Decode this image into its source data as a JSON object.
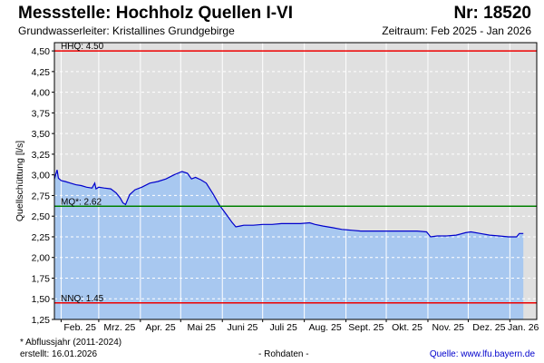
{
  "header": {
    "title": "Messstelle: Hochholz Quellen I-VI",
    "number": "Nr: 18520",
    "subtitle": "Grundwasserleiter: Kristallines Grundgebirge",
    "period": "Zeitraum: Feb 2025 - Jan 2026"
  },
  "footer": {
    "footnote": "* Abflussjahr (2011-2024)",
    "created": "erstellt:  16.01.2026",
    "raw": "- Rohdaten -",
    "source": "Quelle:  www.lfu.bayern.de"
  },
  "colors": {
    "plot_background": "#e0e0e0",
    "area_fill": "#a8c8f0",
    "line": "#0000cc",
    "hhq": "#ee0000",
    "mq": "#008000",
    "nnq": "#ee0000"
  },
  "chart_data": {
    "type": "area",
    "ylabel": "Quellschüttung [l/s]",
    "xlabel": "",
    "ylim": [
      1.25,
      4.6
    ],
    "yticks": [
      "1,25",
      "1,50",
      "1,75",
      "2,00",
      "2,25",
      "2,50",
      "2,75",
      "3,00",
      "3,25",
      "3,50",
      "3,75",
      "4,00",
      "4,25",
      "4,50"
    ],
    "xticks": [
      "Feb. 25",
      "Mrz. 25",
      "Apr. 25",
      "Mai 25",
      "Juni 25",
      "Juli 25",
      "Aug. 25",
      "Sept. 25",
      "Okt. 25",
      "Nov. 25",
      "Dez. 25",
      "Jan. 26"
    ],
    "xlim": [
      "2025-01-27",
      "2026-01-21"
    ],
    "grid": true,
    "reference_lines": [
      {
        "name": "HHQ",
        "label": "HHQ: 4.50",
        "value": 4.5
      },
      {
        "name": "MQ*",
        "label": "MQ*: 2.62",
        "value": 2.62
      },
      {
        "name": "NNQ",
        "label": "NNQ: 1.45",
        "value": 1.45
      }
    ],
    "series": [
      {
        "x": [
          "2025-01-27",
          "2025-01-29",
          "2025-01-30",
          "2025-02-01",
          "2025-02-04",
          "2025-02-08",
          "2025-02-12",
          "2025-02-16",
          "2025-02-20",
          "2025-02-24",
          "2025-02-26",
          "2025-02-27",
          "2025-03-01",
          "2025-03-05",
          "2025-03-10",
          "2025-03-14",
          "2025-03-17",
          "2025-03-19",
          "2025-03-21",
          "2025-03-24",
          "2025-03-28",
          "2025-04-02",
          "2025-04-08",
          "2025-04-14",
          "2025-04-20",
          "2025-04-26",
          "2025-05-02",
          "2025-05-06",
          "2025-05-09",
          "2025-05-12",
          "2025-05-16",
          "2025-05-20",
          "2025-05-25",
          "2025-05-30",
          "2025-06-04",
          "2025-06-08",
          "2025-06-11",
          "2025-06-14",
          "2025-06-17",
          "2025-06-20",
          "2025-06-24",
          "2025-07-01",
          "2025-07-08",
          "2025-07-15",
          "2025-07-22",
          "2025-07-29",
          "2025-08-05",
          "2025-08-09",
          "2025-08-15",
          "2025-08-22",
          "2025-08-29",
          "2025-09-05",
          "2025-09-12",
          "2025-09-19",
          "2025-09-26",
          "2025-10-03",
          "2025-10-10",
          "2025-10-17",
          "2025-10-24",
          "2025-10-31",
          "2025-11-03",
          "2025-11-08",
          "2025-11-15",
          "2025-11-22",
          "2025-11-29",
          "2025-12-03",
          "2025-12-10",
          "2025-12-17",
          "2025-12-24",
          "2025-12-31",
          "2026-01-06",
          "2026-01-08",
          "2026-01-11"
        ],
        "y": [
          2.95,
          3.06,
          2.96,
          2.93,
          2.92,
          2.9,
          2.88,
          2.87,
          2.85,
          2.84,
          2.9,
          2.83,
          2.85,
          2.84,
          2.83,
          2.78,
          2.72,
          2.66,
          2.64,
          2.76,
          2.82,
          2.85,
          2.9,
          2.92,
          2.95,
          3.0,
          3.04,
          3.02,
          2.95,
          2.97,
          2.94,
          2.9,
          2.77,
          2.63,
          2.52,
          2.43,
          2.37,
          2.38,
          2.39,
          2.39,
          2.39,
          2.4,
          2.4,
          2.41,
          2.41,
          2.41,
          2.42,
          2.4,
          2.38,
          2.36,
          2.34,
          2.33,
          2.32,
          2.32,
          2.32,
          2.32,
          2.32,
          2.32,
          2.32,
          2.31,
          2.25,
          2.26,
          2.26,
          2.27,
          2.3,
          2.31,
          2.29,
          2.27,
          2.26,
          2.25,
          2.25,
          2.29,
          2.29
        ]
      }
    ]
  }
}
